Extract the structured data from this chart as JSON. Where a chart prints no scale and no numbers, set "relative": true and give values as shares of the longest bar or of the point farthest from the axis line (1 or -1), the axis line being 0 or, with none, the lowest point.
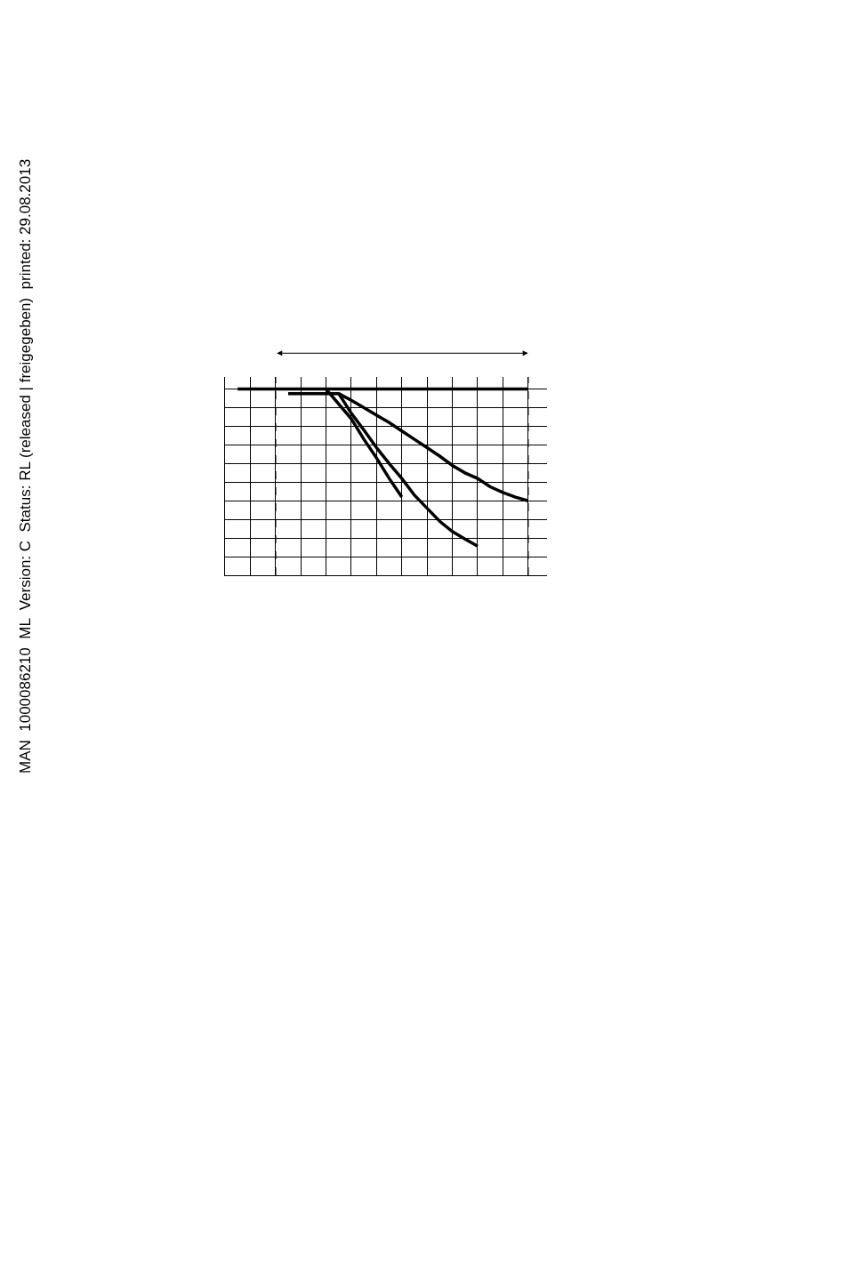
{
  "chart_data": {
    "type": "line",
    "relative": true,
    "grid": true,
    "marker": "none",
    "line_style": "solid",
    "categories": [
      null,
      null,
      null,
      null,
      null,
      null,
      null,
      null,
      null,
      null,
      null,
      null,
      null,
      null,
      null,
      null,
      null,
      null,
      null,
      null,
      null,
      null,
      null,
      null,
      null
    ],
    "series": [
      {
        "color": "#000000",
        "values": [
          null,
          1,
          1,
          1,
          1,
          1,
          1,
          1,
          1,
          1,
          1,
          1,
          1,
          1,
          1,
          1,
          1,
          1,
          1,
          1,
          1,
          1,
          1,
          1,
          1
        ]
      },
      {
        "color": "#000000",
        "values": [
          null,
          null,
          null,
          null,
          null,
          null,
          null,
          null,
          1,
          null,
          0.84,
          0.73,
          0.63,
          0.52,
          0.42,
          null,
          null,
          null,
          null,
          null,
          null,
          null,
          null,
          null,
          null
        ]
      },
      {
        "color": "#000000",
        "values": [
          null,
          null,
          null,
          null,
          null,
          0.976,
          0.976,
          0.976,
          0.976,
          0.976,
          0.87,
          0.78,
          0.685,
          0.6,
          0.52,
          0.43,
          0.36,
          0.29,
          0.235,
          0.195,
          0.156,
          null,
          null,
          null,
          null
        ]
      },
      {
        "color": "#000000",
        "values": [
          null,
          null,
          null,
          null,
          null,
          null,
          null,
          null,
          null,
          0.976,
          0.94,
          0.9,
          0.86,
          0.82,
          0.775,
          0.73,
          0.685,
          0.64,
          0.59,
          0.55,
          0.52,
          0.475,
          0.445,
          0.42,
          0.4
        ]
      }
    ],
    "annotations": [
      "MAN  1000086210  ML  Version: C  Status: RL (released | freigegeben)  printed: 29.08.2013"
    ]
  }
}
